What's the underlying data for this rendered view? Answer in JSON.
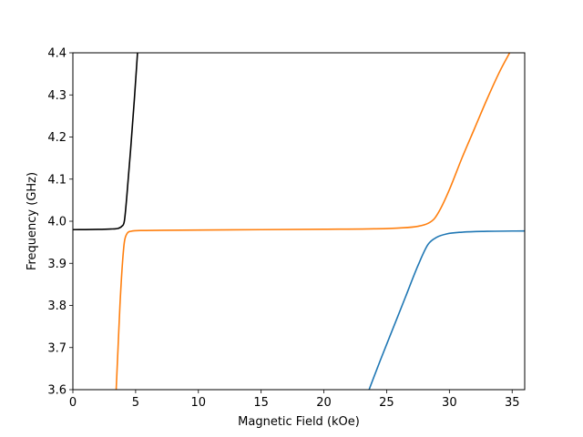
{
  "chart_data": {
    "type": "line",
    "title": "",
    "xlabel": "Magnetic Field (kOe)",
    "ylabel": "Frequency (GHz)",
    "xlim": [
      0,
      36
    ],
    "ylim": [
      3.6,
      4.4
    ],
    "grid": false,
    "legend": "none",
    "x_ticks": [
      0,
      5,
      10,
      15,
      20,
      25,
      30,
      35
    ],
    "x_tick_labels": [
      "0",
      "5",
      "10",
      "15",
      "20",
      "25",
      "30",
      "35"
    ],
    "y_ticks": [
      3.6,
      3.7,
      3.8,
      3.9,
      4.0,
      4.1,
      4.2,
      4.3,
      4.4
    ],
    "y_tick_labels": [
      "3.6",
      "3.7",
      "3.8",
      "3.9",
      "4.0",
      "4.1",
      "4.2",
      "4.3",
      "4.4"
    ],
    "series": [
      {
        "color": "#000000",
        "points": [
          [
            0,
            3.98
          ],
          [
            1,
            3.9802
          ],
          [
            2,
            3.9806
          ],
          [
            3,
            3.9815
          ],
          [
            3.6,
            3.983
          ],
          [
            3.9,
            3.988
          ],
          [
            4.1,
            4.0
          ],
          [
            4.3,
            4.06
          ],
          [
            4.6,
            4.17
          ],
          [
            4.9,
            4.29
          ],
          [
            5.15,
            4.4
          ]
        ]
      },
      {
        "color": "#ff7f0e",
        "points": [
          [
            3.45,
            3.6
          ],
          [
            3.6,
            3.7
          ],
          [
            3.75,
            3.8
          ],
          [
            3.95,
            3.9
          ],
          [
            4.1,
            3.95
          ],
          [
            4.3,
            3.97
          ],
          [
            4.6,
            3.976
          ],
          [
            5.5,
            3.978
          ],
          [
            10,
            3.979
          ],
          [
            15,
            3.98
          ],
          [
            20,
            3.981
          ],
          [
            24,
            3.982
          ],
          [
            26,
            3.984
          ],
          [
            27.5,
            3.988
          ],
          [
            28.3,
            3.995
          ],
          [
            28.8,
            4.006
          ],
          [
            29.3,
            4.03
          ],
          [
            30,
            4.075
          ],
          [
            31,
            4.15
          ],
          [
            32,
            4.22
          ],
          [
            33,
            4.29
          ],
          [
            34,
            4.355
          ],
          [
            34.8,
            4.4
          ]
        ]
      },
      {
        "color": "#1f77b4",
        "points": [
          [
            23.6,
            3.6
          ],
          [
            24.5,
            3.67
          ],
          [
            25.5,
            3.745
          ],
          [
            26.5,
            3.82
          ],
          [
            27.5,
            3.895
          ],
          [
            28.3,
            3.945
          ],
          [
            29,
            3.962
          ],
          [
            29.8,
            3.97
          ],
          [
            31,
            3.974
          ],
          [
            33,
            3.976
          ],
          [
            36,
            3.977
          ]
        ]
      }
    ]
  }
}
